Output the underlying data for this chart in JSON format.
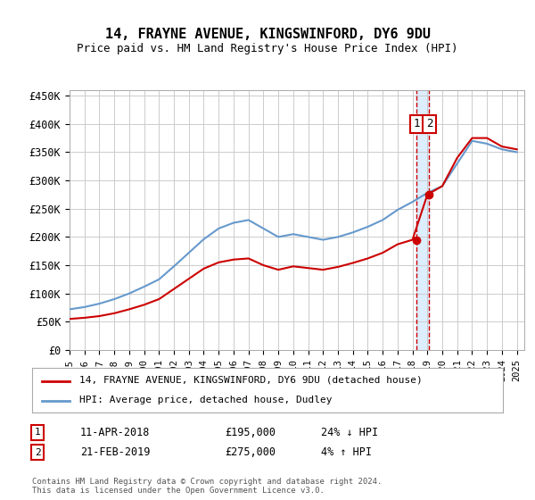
{
  "title": "14, FRAYNE AVENUE, KINGSWINFORD, DY6 9DU",
  "subtitle": "Price paid vs. HM Land Registry's House Price Index (HPI)",
  "xlabel": "",
  "ylabel": "",
  "ylim": [
    0,
    460000
  ],
  "yticks": [
    0,
    50000,
    100000,
    150000,
    200000,
    250000,
    300000,
    350000,
    400000,
    450000
  ],
  "ytick_labels": [
    "£0",
    "£50K",
    "£100K",
    "£150K",
    "£200K",
    "£250K",
    "£300K",
    "£350K",
    "£400K",
    "£450K"
  ],
  "xlim_start": 1995.0,
  "xlim_end": 2025.5,
  "transaction1_date": 2018.27,
  "transaction1_price": 195000,
  "transaction1_label": "1",
  "transaction1_text": "11-APR-2018",
  "transaction1_pct": "24% ↓ HPI",
  "transaction2_date": 2019.13,
  "transaction2_price": 275000,
  "transaction2_label": "2",
  "transaction2_text": "21-FEB-2019",
  "transaction2_pct": "4% ↑ HPI",
  "hpi_color": "#6699cc",
  "price_color": "#cc0000",
  "vline_color": "#cc0000",
  "highlight_color": "#ddeeff",
  "legend_label_price": "14, FRAYNE AVENUE, KINGSWINFORD, DY6 9DU (detached house)",
  "legend_label_hpi": "HPI: Average price, detached house, Dudley",
  "footer": "Contains HM Land Registry data © Crown copyright and database right 2024.\nThis data is licensed under the Open Government Licence v3.0.",
  "background_color": "#ffffff",
  "grid_color": "#cccccc",
  "hpi_years": [
    1995,
    1996,
    1997,
    1998,
    1999,
    2000,
    2001,
    2002,
    2003,
    2004,
    2005,
    2006,
    2007,
    2008,
    2009,
    2010,
    2011,
    2012,
    2013,
    2014,
    2015,
    2016,
    2017,
    2018,
    2019,
    2020,
    2021,
    2022,
    2023,
    2024,
    2025
  ],
  "hpi_values": [
    72000,
    76000,
    82000,
    90000,
    100000,
    112000,
    125000,
    148000,
    172000,
    196000,
    215000,
    225000,
    230000,
    215000,
    200000,
    205000,
    200000,
    195000,
    200000,
    208000,
    218000,
    230000,
    248000,
    262000,
    278000,
    290000,
    330000,
    370000,
    365000,
    355000,
    350000
  ],
  "price_years": [
    1995,
    1996,
    1997,
    1998,
    1999,
    2000,
    2001,
    2002,
    2003,
    2004,
    2005,
    2006,
    2007,
    2008,
    2009,
    2010,
    2011,
    2012,
    2013,
    2014,
    2015,
    2016,
    2017,
    2018,
    2019,
    2020,
    2021,
    2022,
    2023,
    2024,
    2025
  ],
  "price_values": [
    55000,
    57000,
    60000,
    65000,
    72000,
    80000,
    90000,
    108000,
    126000,
    144000,
    155000,
    160000,
    162000,
    150000,
    142000,
    148000,
    145000,
    142000,
    147000,
    154000,
    162000,
    172000,
    187000,
    195000,
    275000,
    290000,
    340000,
    375000,
    375000,
    360000,
    355000
  ]
}
